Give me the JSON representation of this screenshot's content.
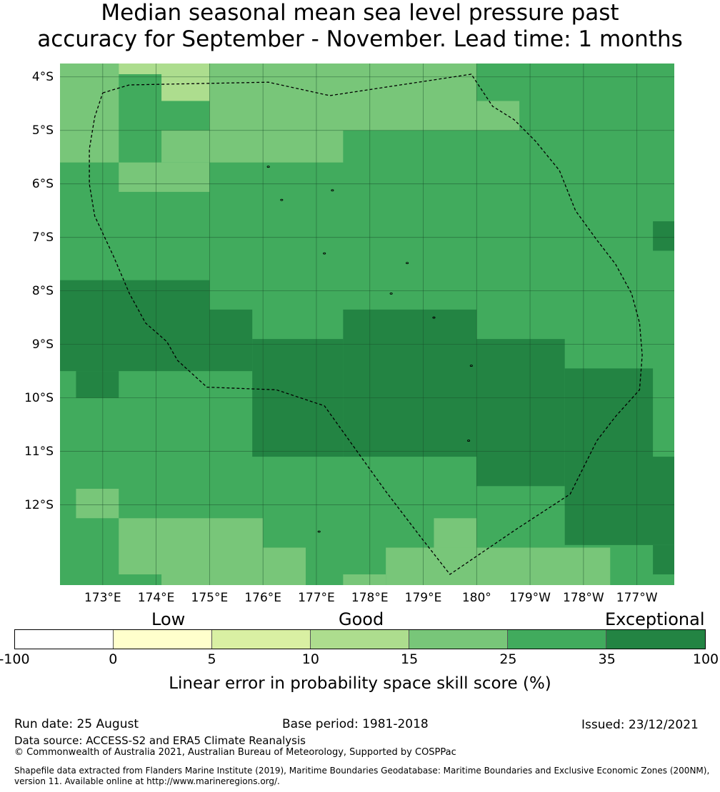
{
  "title_line1": "Median seasonal mean sea level pressure past",
  "title_line2": "accuracy for September - November. Lead time: 1 months",
  "map": {
    "lat_labels": [
      "4°S",
      "5°S",
      "6°S",
      "7°S",
      "8°S",
      "9°S",
      "10°S",
      "11°S",
      "12°S"
    ],
    "lat_values": [
      -4,
      -5,
      -6,
      -7,
      -8,
      -9,
      -10,
      -11,
      -12
    ],
    "lon_labels": [
      "173°E",
      "174°E",
      "175°E",
      "176°E",
      "177°E",
      "178°E",
      "179°E",
      "180°",
      "179°W",
      "178°W",
      "177°W"
    ],
    "lon_values": [
      173,
      174,
      175,
      176,
      177,
      178,
      179,
      180,
      181,
      182,
      183
    ],
    "lon_range": [
      172.2,
      183.7
    ],
    "lat_range": [
      -3.75,
      -13.5
    ],
    "grid": true,
    "category_colors": {
      "c0": "#ffffcc",
      "c5": "#d9f0a3",
      "c10": "#addd8e",
      "c15": "#78c679",
      "c25": "#41ab5d",
      "c35": "#238443"
    },
    "skill_cells": [
      {
        "lon": [
          172.2,
          173.3
        ],
        "lat": [
          -3.75,
          -5.6
        ],
        "cat": "c15"
      },
      {
        "lon": [
          173.3,
          175.0
        ],
        "lat": [
          -3.75,
          -3.95
        ],
        "cat": "c10"
      },
      {
        "lon": [
          174.1,
          176.0
        ],
        "lat": [
          -3.95,
          -4.45
        ],
        "cat": "c10"
      },
      {
        "lon": [
          175.0,
          180.0
        ],
        "lat": [
          -3.75,
          -5.0
        ],
        "cat": "c15"
      },
      {
        "lon": [
          180.0,
          180.8
        ],
        "lat": [
          -4.45,
          -5.0
        ],
        "cat": "c15"
      },
      {
        "lon": [
          174.1,
          177.5
        ],
        "lat": [
          -5.0,
          -5.6
        ],
        "cat": "c15"
      },
      {
        "lon": [
          173.3,
          175.0
        ],
        "lat": [
          -5.6,
          -6.15
        ],
        "cat": "c15"
      },
      {
        "lon": [
          172.2,
          175.0
        ],
        "lat": [
          -7.8,
          -9.5
        ],
        "cat": "c35"
      },
      {
        "lon": [
          172.5,
          173.3
        ],
        "lat": [
          -9.5,
          -10.0
        ],
        "cat": "c35"
      },
      {
        "lon": [
          175.0,
          175.8
        ],
        "lat": [
          -8.35,
          -9.5
        ],
        "cat": "c35"
      },
      {
        "lon": [
          175.8,
          177.5
        ],
        "lat": [
          -8.9,
          -11.1
        ],
        "cat": "c35"
      },
      {
        "lon": [
          177.5,
          180.0
        ],
        "lat": [
          -8.35,
          -11.1
        ],
        "cat": "c35"
      },
      {
        "lon": [
          180.0,
          181.65
        ],
        "lat": [
          -8.9,
          -11.65
        ],
        "cat": "c35"
      },
      {
        "lon": [
          181.65,
          183.3
        ],
        "lat": [
          -9.45,
          -12.75
        ],
        "cat": "c35"
      },
      {
        "lon": [
          182.0,
          183.7
        ],
        "lat": [
          -11.1,
          -12.75
        ],
        "cat": "c35"
      },
      {
        "lon": [
          183.3,
          183.7
        ],
        "lat": [
          -6.7,
          -7.25
        ],
        "cat": "c35"
      },
      {
        "lon": [
          183.3,
          183.7
        ],
        "lat": [
          -12.75,
          -13.3
        ],
        "cat": "c35"
      },
      {
        "lon": [
          172.5,
          173.3
        ],
        "lat": [
          -11.7,
          -12.25
        ],
        "cat": "c15"
      },
      {
        "lon": [
          173.3,
          176.0
        ],
        "lat": [
          -12.25,
          -13.3
        ],
        "cat": "c15"
      },
      {
        "lon": [
          176.0,
          176.8
        ],
        "lat": [
          -12.8,
          -13.5
        ],
        "cat": "c15"
      },
      {
        "lon": [
          174.1,
          176.0
        ],
        "lat": [
          -13.3,
          -13.5
        ],
        "cat": "c15"
      },
      {
        "lon": [
          177.5,
          178.3
        ],
        "lat": [
          -13.3,
          -13.5
        ],
        "cat": "c15"
      },
      {
        "lon": [
          178.3,
          182.5
        ],
        "lat": [
          -12.8,
          -13.5
        ],
        "cat": "c15"
      },
      {
        "lon": [
          179.2,
          180.0
        ],
        "lat": [
          -12.25,
          -12.8
        ],
        "cat": "c15"
      }
    ],
    "eez_boundary": [
      [
        173.0,
        -4.3
      ],
      [
        173.5,
        -4.15
      ],
      [
        176.1,
        -4.1
      ],
      [
        177.25,
        -4.35
      ],
      [
        179.9,
        -3.95
      ],
      [
        180.3,
        -4.55
      ],
      [
        180.7,
        -4.8
      ],
      [
        181.1,
        -5.2
      ],
      [
        181.55,
        -5.75
      ],
      [
        181.85,
        -6.5
      ],
      [
        182.25,
        -7.05
      ],
      [
        182.6,
        -7.5
      ],
      [
        182.9,
        -8.05
      ],
      [
        183.05,
        -8.6
      ],
      [
        183.1,
        -9.2
      ],
      [
        183.05,
        -9.85
      ],
      [
        182.6,
        -10.35
      ],
      [
        182.25,
        -10.8
      ],
      [
        181.75,
        -11.8
      ],
      [
        180.75,
        -12.45
      ],
      [
        179.5,
        -13.3
      ],
      [
        178.95,
        -12.6
      ],
      [
        178.3,
        -11.75
      ],
      [
        177.15,
        -10.15
      ],
      [
        176.25,
        -9.85
      ],
      [
        174.95,
        -9.8
      ],
      [
        174.4,
        -9.3
      ],
      [
        174.2,
        -8.95
      ],
      [
        173.8,
        -8.6
      ],
      [
        173.5,
        -8.05
      ],
      [
        173.2,
        -7.35
      ],
      [
        172.85,
        -6.6
      ],
      [
        172.75,
        -6.0
      ],
      [
        172.75,
        -5.35
      ],
      [
        172.85,
        -4.75
      ],
      [
        173.0,
        -4.3
      ]
    ],
    "islands": [
      {
        "lon": 176.1,
        "lat": -5.68
      },
      {
        "lon": 176.35,
        "lat": -6.3
      },
      {
        "lon": 177.3,
        "lat": -6.12
      },
      {
        "lon": 177.15,
        "lat": -7.3
      },
      {
        "lon": 178.7,
        "lat": -7.48
      },
      {
        "lon": 178.4,
        "lat": -8.05
      },
      {
        "lon": 179.2,
        "lat": -8.5
      },
      {
        "lon": 179.9,
        "lat": -9.4
      },
      {
        "lon": 179.85,
        "lat": -10.8
      },
      {
        "lon": 177.05,
        "lat": -12.5
      }
    ]
  },
  "legend": {
    "categories": [
      "Low",
      "Good",
      "Exceptional"
    ],
    "ticks": [
      "-100",
      "0",
      "5",
      "10",
      "15",
      "25",
      "35",
      "100"
    ],
    "colors": [
      "#ffffff",
      "#ffffcc",
      "#d9f0a3",
      "#addd8e",
      "#78c679",
      "#41ab5d",
      "#238443"
    ],
    "label": "Linear error in probability space skill score (%)"
  },
  "footer": {
    "run_date": "Run date: 25 August",
    "base_period": "Base period: 1981-2018",
    "issued": "Issued: 23/12/2021",
    "data_source": "Data source: ACCESS-S2 and ERA5 Climate Reanalysis",
    "copyright": "© Commonwealth of Australia 2021, Australian Bureau of Meteorology, Supported by COSPPac",
    "shapefile_line1": "Shapefile data extracted from Flanders Marine Institute (2019), Maritime Boundaries Geodatabase: Maritime Boundaries and Exclusive Economic Zones (200NM),",
    "shapefile_line2": "version 11. Available online at http://www.marineregions.org/."
  }
}
